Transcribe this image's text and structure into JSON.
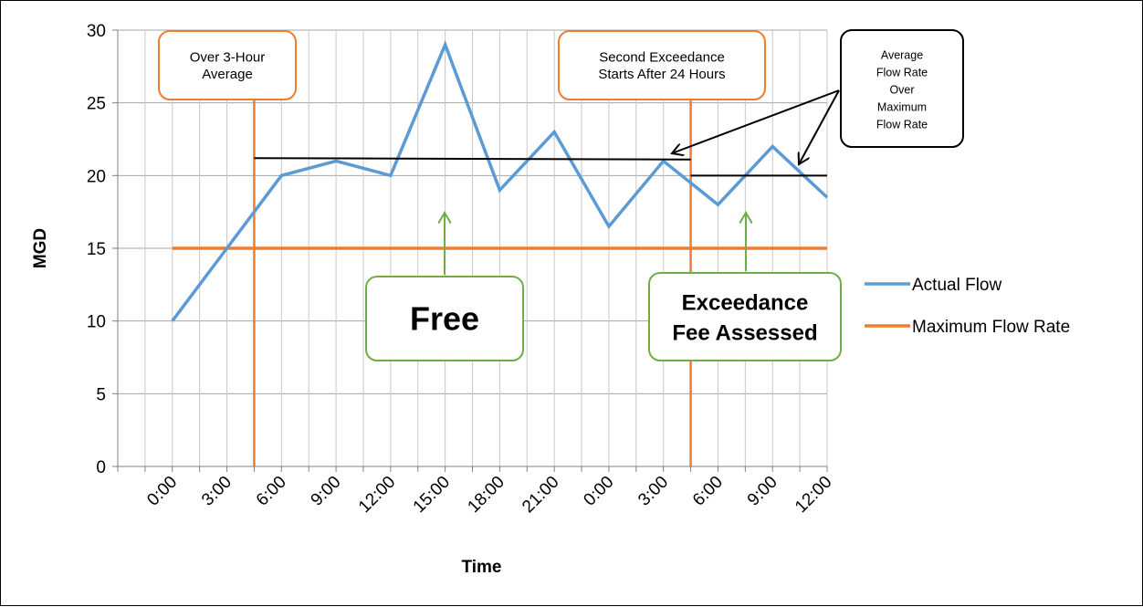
{
  "chart_data": {
    "type": "line",
    "title": "",
    "xlabel": "Time",
    "ylabel": "MGD",
    "ylim": [
      0,
      30
    ],
    "yticks": [
      0,
      5,
      10,
      15,
      20,
      25,
      30
    ],
    "categories": [
      "0:00",
      "3:00",
      "6:00",
      "9:00",
      "12:00",
      "15:00",
      "18:00",
      "21:00",
      "0:00",
      "3:00",
      "6:00",
      "9:00",
      "12:00"
    ],
    "grid": true,
    "legend_position": "right",
    "series": [
      {
        "name": "Actual Flow",
        "color": "#5b9bd5",
        "values": [
          10,
          15,
          20,
          21,
          20,
          29,
          19,
          23,
          16.5,
          21,
          18,
          22,
          18.5
        ]
      },
      {
        "name": "Maximum Flow Rate",
        "color": "#ed7d31",
        "values": [
          15,
          15,
          15,
          15,
          15,
          15,
          15,
          15,
          15,
          15,
          15,
          15,
          15
        ]
      }
    ],
    "vertical_markers": [
      {
        "x": 1.5,
        "color": "#ed7d31"
      },
      {
        "x": 9.5,
        "color": "#ed7d31"
      }
    ],
    "average_lines": [
      {
        "x_start": 1.5,
        "x_end": 9.5,
        "y_start": 21.2,
        "y_end": 21.1,
        "color": "#000000"
      },
      {
        "x_start": 9.5,
        "x_end": 12,
        "y": 20,
        "color": "#000000"
      }
    ],
    "annotations": {
      "over_3hour": {
        "lines": [
          "Over 3-Hour",
          "Average"
        ],
        "border": "#ed7d31"
      },
      "second_exceedance": {
        "lines": [
          "Second Exceedance",
          "Starts After 24 Hours"
        ],
        "border": "#ed7d31"
      },
      "average_over_max": {
        "lines": [
          "Average",
          "Flow Rate",
          "Over",
          "Maximum",
          "Flow Rate"
        ],
        "border": "#000000"
      },
      "free": {
        "text": "Free",
        "border": "#70ad47"
      },
      "exceedance_fee": {
        "lines": [
          "Exceedance",
          "Fee Assessed"
        ],
        "border": "#70ad47"
      }
    }
  }
}
